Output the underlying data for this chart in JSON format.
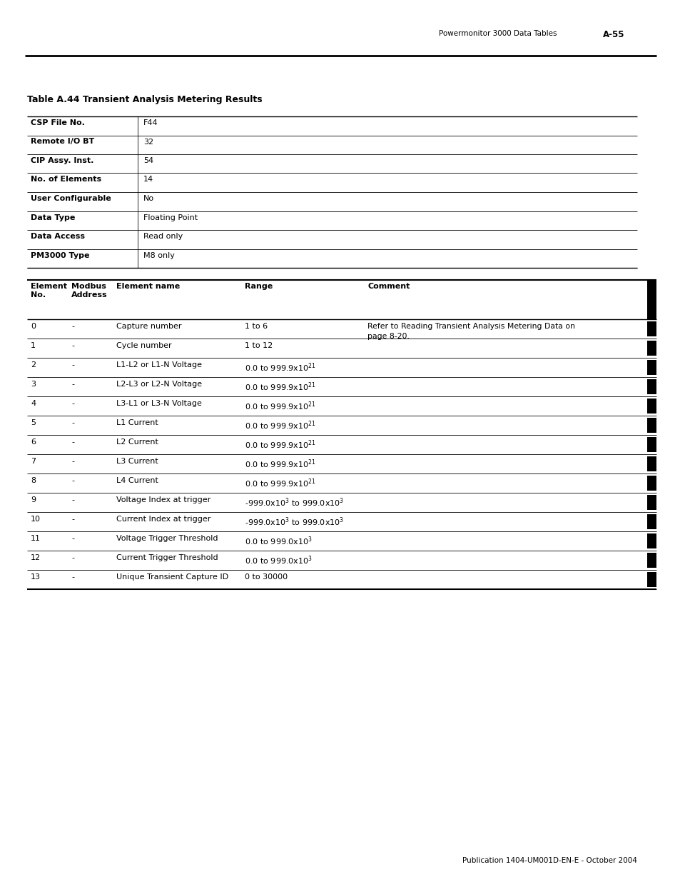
{
  "page_header_right": "Powermonitor 3000 Data Tables",
  "page_number": "A-55",
  "table_title": "Table A.44 Transient Analysis Metering Results",
  "info_rows": [
    [
      "CSP File No.",
      "F44"
    ],
    [
      "Remote I/O BT",
      "32"
    ],
    [
      "CIP Assy. Inst.",
      "54"
    ],
    [
      "No. of Elements",
      "14"
    ],
    [
      "User Configurable",
      "No"
    ],
    [
      "Data Type",
      "Floating Point"
    ],
    [
      "Data Access",
      "Read only"
    ],
    [
      "PM3000 Type",
      "M8 only"
    ]
  ],
  "main_headers": [
    "Element\nNo.",
    "Modbus\nAddress",
    "Element name",
    "Range",
    "Comment"
  ],
  "main_rows": [
    [
      "0",
      "-",
      "Capture number",
      "1 to 6",
      "Refer to Reading Transient Analysis Metering Data on\npage 8-20."
    ],
    [
      "1",
      "-",
      "Cycle number",
      "1 to 12",
      ""
    ],
    [
      "2",
      "-",
      "L1-L2 or L1-N Voltage",
      "0.0 to 999.9x10$^{21}$",
      ""
    ],
    [
      "3",
      "-",
      "L2-L3 or L2-N Voltage",
      "0.0 to 999.9x10$^{21}$",
      ""
    ],
    [
      "4",
      "-",
      "L3-L1 or L3-N Voltage",
      "0.0 to 999.9x10$^{21}$",
      ""
    ],
    [
      "5",
      "-",
      "L1 Current",
      "0.0 to 999.9x10$^{21}$",
      ""
    ],
    [
      "6",
      "-",
      "L2 Current",
      "0.0 to 999.9x10$^{21}$",
      ""
    ],
    [
      "7",
      "-",
      "L3 Current",
      "0.0 to 999.9x10$^{21}$",
      ""
    ],
    [
      "8",
      "-",
      "L4 Current",
      "0.0 to 999.9x10$^{21}$",
      ""
    ],
    [
      "9",
      "-",
      "Voltage Index at trigger",
      "-999.0x10$^{3}$ to 999.0x10$^{3}$",
      ""
    ],
    [
      "10",
      "-",
      "Current Index at trigger",
      "-999.0x10$^{3}$ to 999.0x10$^{3}$",
      ""
    ],
    [
      "11",
      "-",
      "Voltage Trigger Threshold",
      "0.0 to 999.0x10$^{3}$",
      ""
    ],
    [
      "12",
      "-",
      "Current Trigger Threshold",
      "0.0 to 999.0x10$^{3}$",
      ""
    ],
    [
      "13",
      "-",
      "Unique Transient Capture ID",
      "0 to 30000",
      ""
    ]
  ],
  "footer_text": "Publication 1404-UM001D-EN-E - October 2004",
  "bg_color": "#ffffff"
}
